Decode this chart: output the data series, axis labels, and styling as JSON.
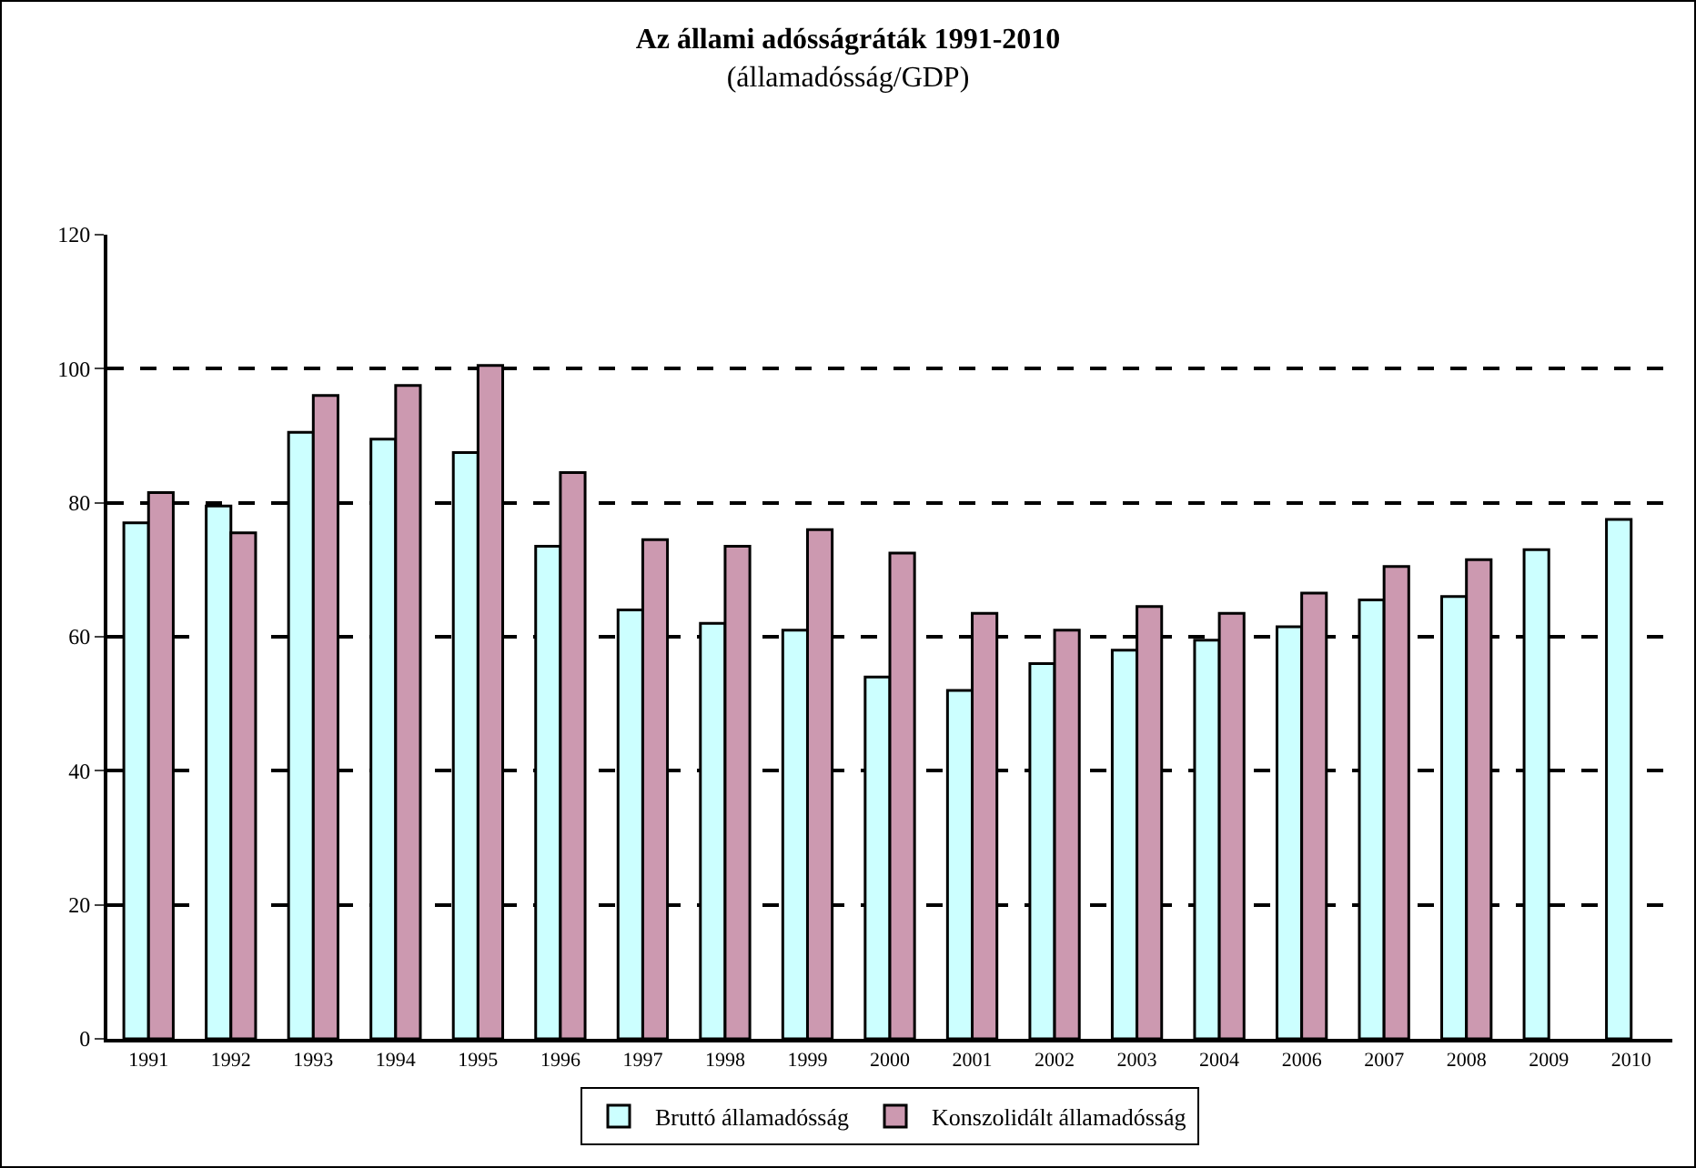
{
  "chart_data": {
    "type": "bar",
    "title": "Az állami adósságráták 1991-2010",
    "subtitle": "(államadósság/GDP)",
    "categories": [
      "1991",
      "1992",
      "1993",
      "1994",
      "1995",
      "1996",
      "1997",
      "1998",
      "1999",
      "2000",
      "2001",
      "2002",
      "2003",
      "2004",
      "2006",
      "2007",
      "2008",
      "2009",
      "2010"
    ],
    "series": [
      {
        "name": "Bruttó államadósság",
        "color": "#ccffff",
        "values": [
          77,
          79.5,
          90.5,
          89.5,
          87.5,
          73.5,
          64,
          62,
          61,
          54,
          52,
          56,
          58,
          59.5,
          61.5,
          65.5,
          66,
          73,
          77.5
        ]
      },
      {
        "name": "Konszolidált államadósság",
        "color": "#cc99b0",
        "values": [
          81.5,
          75.5,
          96,
          97.5,
          100.5,
          84.5,
          74.5,
          73.5,
          76,
          72.5,
          63.5,
          61,
          64.5,
          63.5,
          66.5,
          70.5,
          71.5,
          null,
          null
        ]
      }
    ],
    "ylim": [
      0,
      120
    ],
    "yticks": [
      0,
      20,
      40,
      60,
      80,
      100,
      120
    ],
    "grid": "y",
    "legend": "bottom"
  }
}
